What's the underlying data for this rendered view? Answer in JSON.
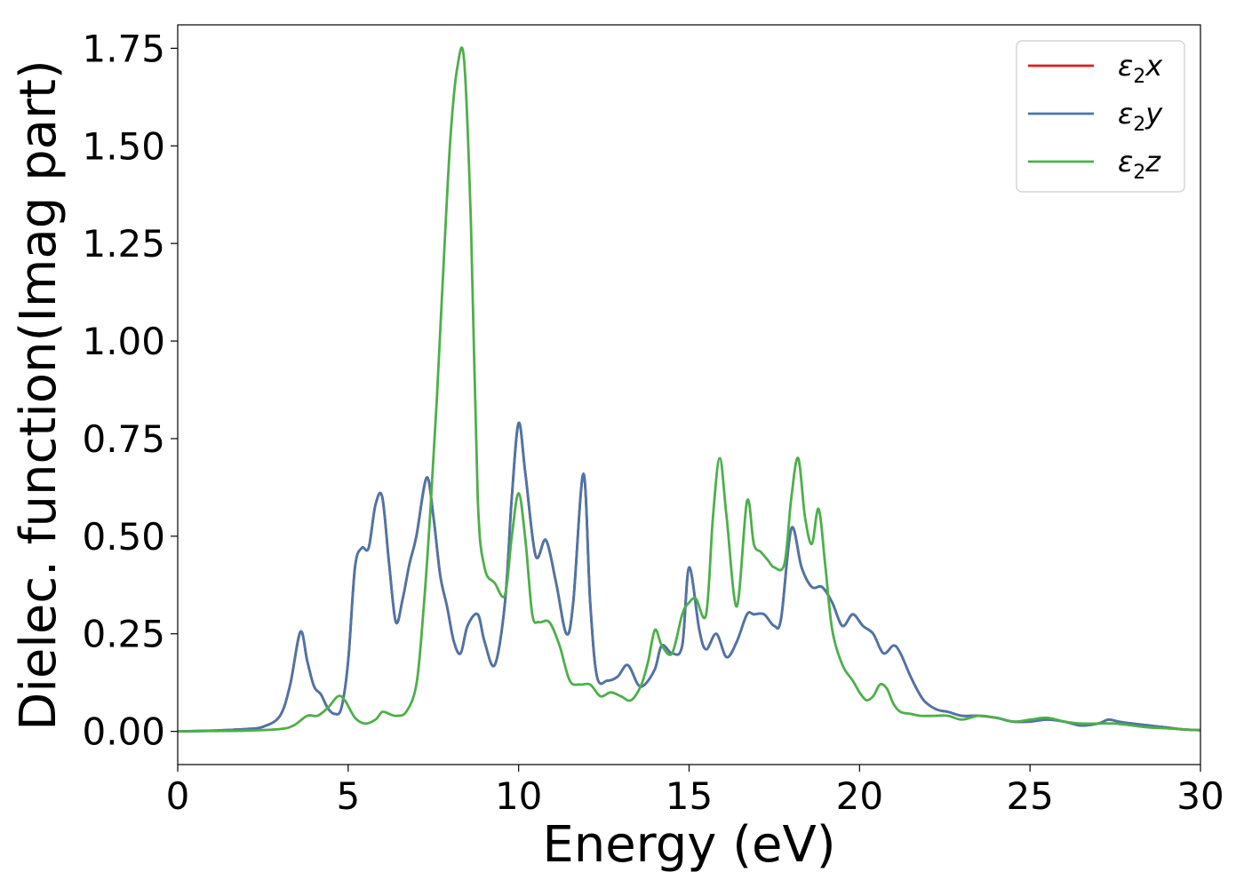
{
  "chart_data": {
    "type": "line",
    "title": "",
    "xlabel": "Energy (eV)",
    "ylabel": "Dielec. function(Imag part)",
    "xlim": [
      0,
      30
    ],
    "ylim": [
      -0.085,
      1.81
    ],
    "xticks": [
      0,
      5,
      10,
      15,
      20,
      25,
      30
    ],
    "xtick_labels": [
      "0",
      "5",
      "10",
      "15",
      "20",
      "25",
      "30"
    ],
    "yticks": [
      0.0,
      0.25,
      0.5,
      0.75,
      1.0,
      1.25,
      1.5,
      1.75
    ],
    "ytick_labels": [
      "0.00",
      "0.25",
      "0.50",
      "0.75",
      "1.00",
      "1.25",
      "1.50",
      "1.75"
    ],
    "grid": false,
    "legend_position": "top-right",
    "series": [
      {
        "name": "ε2x",
        "legend_base": "ε",
        "legend_sub": "2",
        "legend_var": "x",
        "color": "#e41a1c",
        "x": [
          0,
          1,
          2,
          2.5,
          3,
          3.3,
          3.6,
          3.8,
          4.0,
          4.2,
          4.4,
          4.6,
          4.8,
          5.0,
          5.2,
          5.4,
          5.6,
          5.8,
          6.0,
          6.2,
          6.4,
          6.6,
          6.8,
          7.0,
          7.3,
          7.5,
          7.7,
          7.9,
          8.1,
          8.3,
          8.5,
          8.8,
          9.0,
          9.3,
          9.6,
          9.8,
          10.0,
          10.2,
          10.5,
          10.8,
          11.1,
          11.4,
          11.6,
          11.9,
          12.1,
          12.3,
          12.6,
          12.9,
          13.2,
          13.5,
          13.7,
          14.0,
          14.2,
          14.5,
          14.8,
          15.0,
          15.3,
          15.5,
          15.8,
          16.1,
          16.4,
          16.7,
          16.9,
          17.2,
          17.5,
          17.7,
          18.0,
          18.3,
          18.6,
          18.9,
          19.2,
          19.5,
          19.8,
          20.1,
          20.4,
          20.7,
          21.0,
          21.2,
          21.5,
          21.8,
          22.0,
          22.3,
          22.6,
          23.0,
          23.5,
          24.0,
          24.5,
          25.0,
          25.5,
          26.0,
          26.5,
          27.0,
          27.3,
          27.6,
          28.0,
          28.5,
          29.0,
          29.5,
          30
        ],
        "y": [
          0.0,
          0.002,
          0.006,
          0.012,
          0.04,
          0.12,
          0.255,
          0.18,
          0.115,
          0.095,
          0.06,
          0.045,
          0.06,
          0.18,
          0.42,
          0.47,
          0.47,
          0.58,
          0.6,
          0.43,
          0.28,
          0.34,
          0.43,
          0.5,
          0.65,
          0.55,
          0.4,
          0.32,
          0.23,
          0.2,
          0.27,
          0.3,
          0.23,
          0.17,
          0.33,
          0.6,
          0.79,
          0.66,
          0.45,
          0.49,
          0.38,
          0.25,
          0.33,
          0.66,
          0.33,
          0.14,
          0.13,
          0.14,
          0.17,
          0.12,
          0.12,
          0.16,
          0.22,
          0.2,
          0.22,
          0.42,
          0.26,
          0.21,
          0.25,
          0.19,
          0.23,
          0.3,
          0.3,
          0.3,
          0.27,
          0.29,
          0.52,
          0.42,
          0.37,
          0.37,
          0.33,
          0.27,
          0.3,
          0.27,
          0.25,
          0.2,
          0.22,
          0.2,
          0.14,
          0.09,
          0.07,
          0.055,
          0.05,
          0.04,
          0.04,
          0.035,
          0.025,
          0.025,
          0.03,
          0.025,
          0.015,
          0.02,
          0.03,
          0.025,
          0.02,
          0.015,
          0.01,
          0.005,
          0.003
        ]
      },
      {
        "name": "ε2y",
        "legend_base": "ε",
        "legend_sub": "2",
        "legend_var": "y",
        "color": "#4a76a8",
        "x": [
          0,
          1,
          2,
          2.5,
          3,
          3.3,
          3.6,
          3.8,
          4.0,
          4.2,
          4.4,
          4.6,
          4.8,
          5.0,
          5.2,
          5.4,
          5.6,
          5.8,
          6.0,
          6.2,
          6.4,
          6.6,
          6.8,
          7.0,
          7.3,
          7.5,
          7.7,
          7.9,
          8.1,
          8.3,
          8.5,
          8.8,
          9.0,
          9.3,
          9.6,
          9.8,
          10.0,
          10.2,
          10.5,
          10.8,
          11.1,
          11.4,
          11.6,
          11.9,
          12.1,
          12.3,
          12.6,
          12.9,
          13.2,
          13.5,
          13.7,
          14.0,
          14.2,
          14.5,
          14.8,
          15.0,
          15.3,
          15.5,
          15.8,
          16.1,
          16.4,
          16.7,
          16.9,
          17.2,
          17.5,
          17.7,
          18.0,
          18.3,
          18.6,
          18.9,
          19.2,
          19.5,
          19.8,
          20.1,
          20.4,
          20.7,
          21.0,
          21.2,
          21.5,
          21.8,
          22.0,
          22.3,
          22.6,
          23.0,
          23.5,
          24.0,
          24.5,
          25.0,
          25.5,
          26.0,
          26.5,
          27.0,
          27.3,
          27.6,
          28.0,
          28.5,
          29.0,
          29.5,
          30
        ],
        "y": [
          0.0,
          0.002,
          0.006,
          0.012,
          0.04,
          0.12,
          0.255,
          0.18,
          0.115,
          0.095,
          0.06,
          0.045,
          0.06,
          0.18,
          0.42,
          0.47,
          0.47,
          0.58,
          0.6,
          0.43,
          0.28,
          0.34,
          0.43,
          0.5,
          0.65,
          0.55,
          0.4,
          0.32,
          0.23,
          0.2,
          0.27,
          0.3,
          0.23,
          0.17,
          0.33,
          0.6,
          0.79,
          0.66,
          0.45,
          0.49,
          0.38,
          0.25,
          0.33,
          0.66,
          0.33,
          0.14,
          0.13,
          0.14,
          0.17,
          0.12,
          0.12,
          0.16,
          0.22,
          0.2,
          0.22,
          0.42,
          0.26,
          0.21,
          0.25,
          0.19,
          0.23,
          0.3,
          0.3,
          0.3,
          0.27,
          0.29,
          0.52,
          0.42,
          0.37,
          0.37,
          0.33,
          0.27,
          0.3,
          0.27,
          0.25,
          0.2,
          0.22,
          0.2,
          0.14,
          0.09,
          0.07,
          0.055,
          0.05,
          0.04,
          0.04,
          0.035,
          0.025,
          0.025,
          0.03,
          0.025,
          0.015,
          0.02,
          0.03,
          0.025,
          0.02,
          0.015,
          0.01,
          0.005,
          0.003
        ]
      },
      {
        "name": "ε2z",
        "legend_base": "ε",
        "legend_sub": "2",
        "legend_var": "z",
        "color": "#4daf4a",
        "x": [
          0,
          1,
          2,
          3,
          3.4,
          3.8,
          4.1,
          4.4,
          4.7,
          4.9,
          5.2,
          5.5,
          5.8,
          6.0,
          6.2,
          6.4,
          6.7,
          7.0,
          7.2,
          7.4,
          7.6,
          7.8,
          8.0,
          8.2,
          8.4,
          8.6,
          8.8,
          9.0,
          9.3,
          9.6,
          9.8,
          10.0,
          10.2,
          10.4,
          10.6,
          10.9,
          11.2,
          11.5,
          11.8,
          12.1,
          12.4,
          12.7,
          13.0,
          13.3,
          13.6,
          13.8,
          14.0,
          14.2,
          14.5,
          14.8,
          15.0,
          15.2,
          15.5,
          15.7,
          15.9,
          16.1,
          16.4,
          16.7,
          16.9,
          17.1,
          17.3,
          17.5,
          17.8,
          18.0,
          18.2,
          18.4,
          18.6,
          18.8,
          19.0,
          19.2,
          19.5,
          19.8,
          20.0,
          20.2,
          20.4,
          20.6,
          20.8,
          21.0,
          21.2,
          21.5,
          21.8,
          22.2,
          22.6,
          23.0,
          23.5,
          24.0,
          24.5,
          25.0,
          25.5,
          26.0,
          26.5,
          27.0,
          27.5,
          28.0,
          28.5,
          29.0,
          29.5,
          30
        ],
        "y": [
          0.0,
          0.001,
          0.002,
          0.006,
          0.015,
          0.04,
          0.04,
          0.06,
          0.09,
          0.08,
          0.035,
          0.02,
          0.03,
          0.05,
          0.045,
          0.04,
          0.05,
          0.12,
          0.3,
          0.55,
          0.85,
          1.2,
          1.52,
          1.7,
          1.72,
          1.3,
          0.6,
          0.42,
          0.38,
          0.35,
          0.5,
          0.61,
          0.49,
          0.3,
          0.28,
          0.28,
          0.22,
          0.13,
          0.12,
          0.12,
          0.09,
          0.1,
          0.09,
          0.08,
          0.12,
          0.18,
          0.26,
          0.22,
          0.2,
          0.3,
          0.33,
          0.34,
          0.3,
          0.55,
          0.7,
          0.55,
          0.32,
          0.59,
          0.48,
          0.46,
          0.44,
          0.42,
          0.43,
          0.6,
          0.7,
          0.55,
          0.48,
          0.57,
          0.42,
          0.26,
          0.17,
          0.13,
          0.1,
          0.08,
          0.09,
          0.12,
          0.11,
          0.07,
          0.05,
          0.045,
          0.04,
          0.04,
          0.04,
          0.03,
          0.04,
          0.035,
          0.025,
          0.03,
          0.035,
          0.025,
          0.02,
          0.02,
          0.02,
          0.015,
          0.01,
          0.008,
          0.005,
          0.003
        ]
      }
    ]
  }
}
